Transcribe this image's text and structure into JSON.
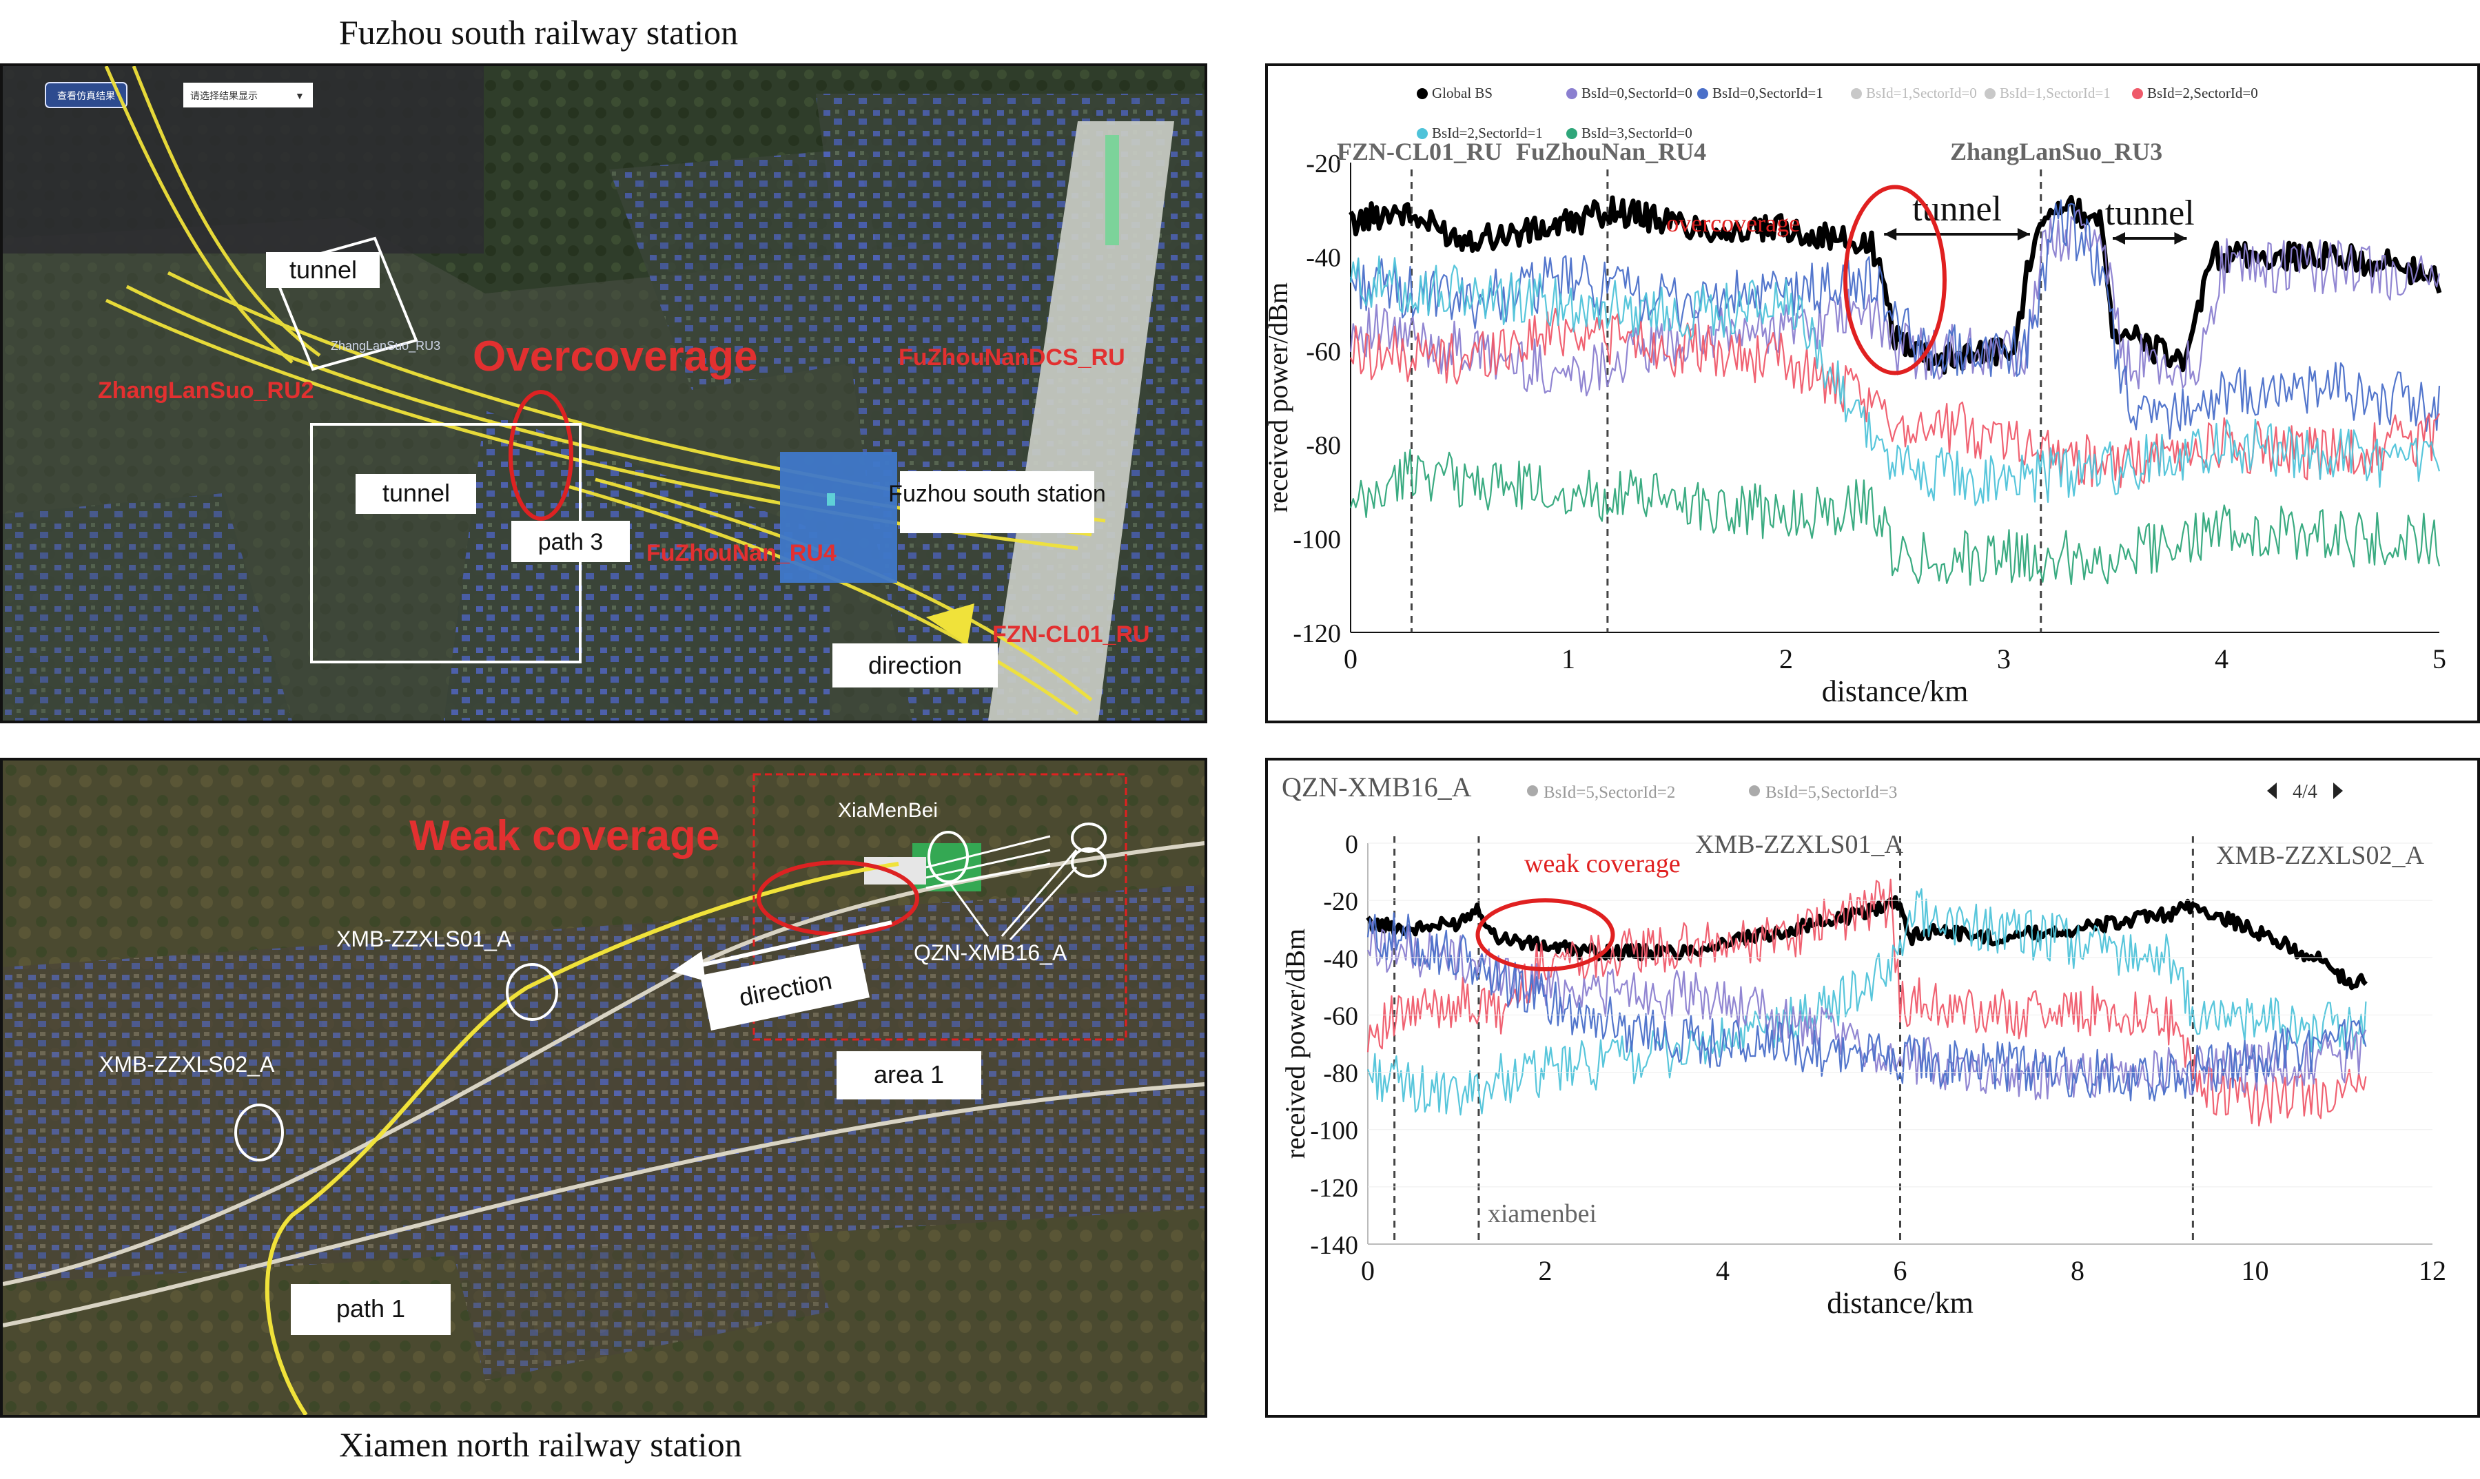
{
  "captions": {
    "top": "Fuzhou south railway station",
    "bottom": "Xiamen north railway station"
  },
  "fuzhou_map": {
    "ui_button": "查看仿真结果",
    "ui_select": "请选择结果显示",
    "labels": {
      "tunnel_top": "tunnel",
      "tunnel_mid": "tunnel",
      "path3": "path 3",
      "station": "Fuzhou south station",
      "direction": "direction",
      "overcoverage": "Overcoverage",
      "zhanglansuo_ru2": "ZhangLanSuo_RU2",
      "zhanglansuo_ru3": "ZhangLanSuo_RU3",
      "fuzhounan_ru4": "FuZhouNan_RU4",
      "fuzhounan_dcs": "FuZhouNanDCS_RU",
      "fzn_cl01": "FZN-CL01_RU"
    }
  },
  "xiamen_map": {
    "labels": {
      "weak": "Weak coverage",
      "xiamenbei": "XiaMenBei",
      "xmb01": "XMB-ZZXLS01_A",
      "xmb02": "XMB-ZZXLS02_A",
      "qzn": "QZN-XMB16_A",
      "direction": "direction",
      "area1": "area 1",
      "path1": "path 1"
    }
  },
  "chart_data": [
    {
      "type": "line",
      "xlabel": "distance/km",
      "ylabel": "received power/dBm",
      "xlim": [
        0,
        5
      ],
      "ylim": [
        -120,
        -20
      ],
      "xticks": [
        "0",
        "1",
        "2",
        "3",
        "4",
        "5"
      ],
      "yticks": [
        "-20",
        "-40",
        "-60",
        "-80",
        "-100",
        "-120"
      ],
      "legend_position": "top",
      "legend": [
        {
          "name": "Global BS",
          "color": "#000000"
        },
        {
          "name": "BsId=0,SectorId=0",
          "color": "#8b7fd0"
        },
        {
          "name": "BsId=0,SectorId=1",
          "color": "#4a6fc9"
        },
        {
          "name": "BsId=1,SectorId=0",
          "color": "#c8c8c8"
        },
        {
          "name": "BsId=1,SectorId=1",
          "color": "#c8c8c8"
        },
        {
          "name": "BsId=2,SectorId=0",
          "color": "#ef5a6a"
        },
        {
          "name": "BsId=2,SectorId=1",
          "color": "#4fc3d9"
        },
        {
          "name": "BsId=3,SectorId=0",
          "color": "#2fa67a"
        }
      ],
      "vlines": [
        0.28,
        1.18,
        3.17
      ],
      "annotations": {
        "ru_left": "FZN-CL01_RU",
        "ru_mid": "FuZhouNan_RU4",
        "ru_right": "ZhangLanSuo_RU3",
        "overcoverage": "overcoverage",
        "tunnel1": "tunnel",
        "tunnel2": "tunnel"
      },
      "tunnel_spans": [
        [
          2.45,
          3.12
        ],
        [
          3.5,
          3.84
        ]
      ],
      "ellipse_center": [
        2.5,
        -45
      ],
      "series": [
        {
          "color": "#000000",
          "x": [
            0,
            0.2,
            0.3,
            0.5,
            0.8,
            1.0,
            1.2,
            1.5,
            1.8,
            2.0,
            2.2,
            2.4,
            2.5,
            2.7,
            2.9,
            3.05,
            3.15,
            3.2,
            3.3,
            3.45,
            3.5,
            3.7,
            3.85,
            3.95,
            4.2,
            4.5,
            4.8,
            5.0
          ],
          "y": [
            -33,
            -30,
            -32,
            -36,
            -35,
            -33,
            -30,
            -33,
            -35,
            -34,
            -36,
            -38,
            -57,
            -62,
            -60,
            -60,
            -32,
            -30,
            -30,
            -32,
            -55,
            -60,
            -62,
            -40,
            -40,
            -40,
            -42,
            -45
          ]
        },
        {
          "color": "#8b7fd0",
          "x": [
            0,
            0.5,
            1.0,
            1.5,
            2.0,
            2.4,
            2.5,
            3.1,
            3.2,
            3.45,
            3.55,
            3.9,
            4.0,
            4.5,
            5.0
          ],
          "y": [
            -55,
            -60,
            -65,
            -58,
            -55,
            -52,
            -60,
            -61,
            -35,
            -35,
            -62,
            -63,
            -42,
            -42,
            -46
          ]
        },
        {
          "color": "#4a6fc9",
          "x": [
            0,
            0.5,
            1.0,
            1.5,
            2.0,
            2.4,
            2.6,
            3.1,
            3.25,
            3.4,
            3.6,
            4.0,
            4.5,
            5.0
          ],
          "y": [
            -45,
            -50,
            -45,
            -50,
            -48,
            -45,
            -60,
            -60,
            -32,
            -38,
            -75,
            -70,
            -68,
            -72
          ]
        },
        {
          "color": "#ef5a6a",
          "x": [
            0,
            0.5,
            1.0,
            1.5,
            2.0,
            2.5,
            3.0,
            3.5,
            4.0,
            4.5,
            5.0
          ],
          "y": [
            -60,
            -62,
            -55,
            -60,
            -62,
            -75,
            -78,
            -85,
            -80,
            -82,
            -78
          ]
        },
        {
          "color": "#4fc3d9",
          "x": [
            0,
            0.5,
            1.0,
            1.5,
            2.0,
            2.5,
            3.0,
            3.5,
            4.0,
            4.5,
            5.0
          ],
          "y": [
            -45,
            -48,
            -50,
            -52,
            -50,
            -85,
            -88,
            -85,
            -80,
            -82,
            -85
          ]
        },
        {
          "color": "#2fa67a",
          "x": [
            0,
            0.3,
            0.5,
            1.0,
            1.5,
            2.0,
            2.4,
            2.5,
            3.1,
            3.5,
            3.8,
            4.0,
            4.5,
            5.0
          ],
          "y": [
            -95,
            -85,
            -88,
            -90,
            -92,
            -95,
            -93,
            -104,
            -104,
            -104,
            -100,
            -98,
            -100,
            -100
          ]
        }
      ]
    },
    {
      "type": "line",
      "xlabel": "distance/km",
      "ylabel": "received power/dBm",
      "xlim": [
        0,
        12
      ],
      "ylim": [
        -140,
        0
      ],
      "xticks": [
        "0",
        "2",
        "4",
        "6",
        "8",
        "10",
        "12"
      ],
      "yticks": [
        "0",
        "-20",
        "-40",
        "-60",
        "-80",
        "-100",
        "-120",
        "-140"
      ],
      "legend_position": "top",
      "legend": [
        {
          "name": "QZN-XMB16_A",
          "color": "#444444"
        },
        {
          "name": "BsId=5,SectorId=2",
          "color": "#aaaaaa"
        },
        {
          "name": "BsId=5,SectorId=3",
          "color": "#aaaaaa"
        }
      ],
      "page": "4/4",
      "vlines": [
        0.3,
        1.25,
        6.0,
        9.3
      ],
      "annotations": {
        "weak": "weak coverage",
        "xmb01": "XMB-ZZXLS01_A",
        "xmb02": "XMB-ZZXLS02_A",
        "xiamenbei": "xiamenbei"
      },
      "ellipse_center": [
        2.0,
        -32
      ],
      "series": [
        {
          "color": "#000000",
          "x": [
            0,
            0.5,
            1.0,
            1.25,
            1.4,
            1.8,
            2.5,
            3.5,
            4.5,
            5.5,
            6.0,
            6.1,
            6.4,
            7.0,
            8.0,
            9.0,
            9.3,
            9.8,
            10.3,
            10.8,
            11.1,
            11.25
          ],
          "y": [
            -28,
            -30,
            -28,
            -22,
            -32,
            -35,
            -38,
            -38,
            -32,
            -25,
            -20,
            -33,
            -30,
            -33,
            -30,
            -25,
            -22,
            -28,
            -35,
            -42,
            -50,
            -47
          ]
        },
        {
          "color": "#ef5a6a",
          "x": [
            0,
            0.5,
            1.0,
            1.5,
            2.0,
            3.0,
            4.0,
            5.0,
            5.9,
            6.0,
            7.0,
            8.0,
            9.0,
            9.4,
            10.0,
            11.0,
            11.25
          ],
          "y": [
            -65,
            -60,
            -55,
            -60,
            -40,
            -38,
            -36,
            -30,
            -20,
            -55,
            -60,
            -58,
            -60,
            -85,
            -90,
            -88,
            -85
          ]
        },
        {
          "color": "#4fc3d9",
          "x": [
            0,
            0.5,
            1.0,
            1.5,
            2.0,
            3.0,
            4.0,
            5.0,
            5.9,
            6.1,
            6.3,
            7.0,
            8.0,
            9.0,
            9.3,
            10.0,
            11.0,
            11.25
          ],
          "y": [
            -80,
            -85,
            -90,
            -82,
            -80,
            -75,
            -70,
            -60,
            -45,
            -22,
            -25,
            -30,
            -35,
            -40,
            -60,
            -62,
            -65,
            -62
          ]
        },
        {
          "color": "#8b7fd0",
          "x": [
            0,
            0.5,
            1.0,
            1.5,
            2.0,
            3.0,
            4.0,
            4.5,
            6.0,
            7.0,
            8.0,
            9.0,
            10.0,
            11.0,
            11.25
          ],
          "y": [
            -35,
            -38,
            -40,
            -45,
            -50,
            -52,
            -55,
            -60,
            -75,
            -80,
            -82,
            -80,
            -78,
            -75,
            -72
          ]
        },
        {
          "color": "#4a6fc9",
          "x": [
            0,
            0.5,
            1.0,
            2.0,
            3.0,
            4.0,
            5.0,
            6.0,
            7.0,
            8.0,
            9.0,
            10.0,
            11.0,
            11.25
          ],
          "y": [
            -32,
            -34,
            -40,
            -55,
            -65,
            -70,
            -72,
            -75,
            -78,
            -80,
            -82,
            -75,
            -70,
            -70
          ]
        }
      ]
    }
  ]
}
